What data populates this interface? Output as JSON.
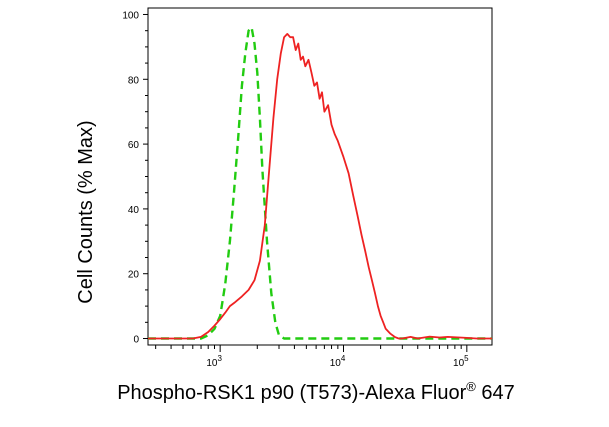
{
  "chart_data": {
    "type": "line",
    "title": "",
    "xlabel": "Phospho-RSK1 p90 (T573)-Alexa Fluor",
    "xlabel_superscript": "®",
    "xlabel_suffix": " 647",
    "ylabel": "Cell Counts (% Max)",
    "xscale": "log",
    "xlim": [
      260,
      160000
    ],
    "ylim": [
      -2,
      102
    ],
    "grid": false,
    "legend": "none",
    "x_ticks": [
      {
        "value": 1000,
        "base": "10",
        "exp": "3"
      },
      {
        "value": 10000,
        "base": "10",
        "exp": "4"
      },
      {
        "value": 100000,
        "base": "10",
        "exp": "5"
      }
    ],
    "y_ticks": [
      {
        "value": 0,
        "label": "0"
      },
      {
        "value": 20,
        "label": "20"
      },
      {
        "value": 40,
        "label": "40"
      },
      {
        "value": 60,
        "label": "60"
      },
      {
        "value": 80,
        "label": "80"
      },
      {
        "value": 100,
        "label": "100"
      }
    ],
    "series": [
      {
        "color": "#22cc11",
        "style": "dashed",
        "x": [
          260,
          500,
          700,
          800,
          900,
          1000,
          1050,
          1100,
          1200,
          1300,
          1400,
          1500,
          1600,
          1700,
          1800,
          1900,
          2000,
          2100,
          2200,
          2400,
          2600,
          2800,
          3000,
          3300,
          4000,
          160000
        ],
        "y": [
          0,
          0,
          0,
          1,
          3,
          7,
          12,
          17,
          30,
          46,
          62,
          78,
          88,
          95,
          96,
          91,
          82,
          68,
          52,
          30,
          14,
          5,
          1,
          0,
          0,
          0
        ]
      },
      {
        "color": "#ee2222",
        "style": "solid",
        "x": [
          260,
          600,
          700,
          800,
          900,
          1000,
          1100,
          1200,
          1300,
          1500,
          1700,
          1900,
          2100,
          2300,
          2500,
          2700,
          2900,
          3100,
          3300,
          3500,
          3700,
          3900,
          4100,
          4300,
          4500,
          4700,
          4900,
          5200,
          5500,
          5800,
          6100,
          6400,
          6700,
          7000,
          7500,
          8000,
          8500,
          9000,
          10000,
          11000,
          12000,
          13000,
          14000,
          15000,
          16000,
          17000,
          18000,
          19000,
          20000,
          21000,
          22000,
          24000,
          26000,
          28000,
          30000,
          35000,
          40000,
          50000,
          60000,
          70000,
          100000,
          120000,
          160000
        ],
        "y": [
          0,
          0,
          0.5,
          2,
          4,
          6,
          8,
          10,
          11,
          13,
          15,
          18,
          24,
          35,
          52,
          68,
          80,
          88,
          93,
          94,
          93,
          93,
          89,
          91,
          86,
          87,
          84,
          86,
          82,
          78,
          79,
          74,
          76,
          70,
          72,
          66,
          63,
          61,
          56,
          51,
          44,
          38,
          32,
          27,
          22,
          18,
          14,
          10,
          7,
          5,
          3,
          1.5,
          0.5,
          0,
          0,
          0.5,
          0,
          0.6,
          0.3,
          0.5,
          0.2,
          0,
          0
        ]
      }
    ]
  }
}
